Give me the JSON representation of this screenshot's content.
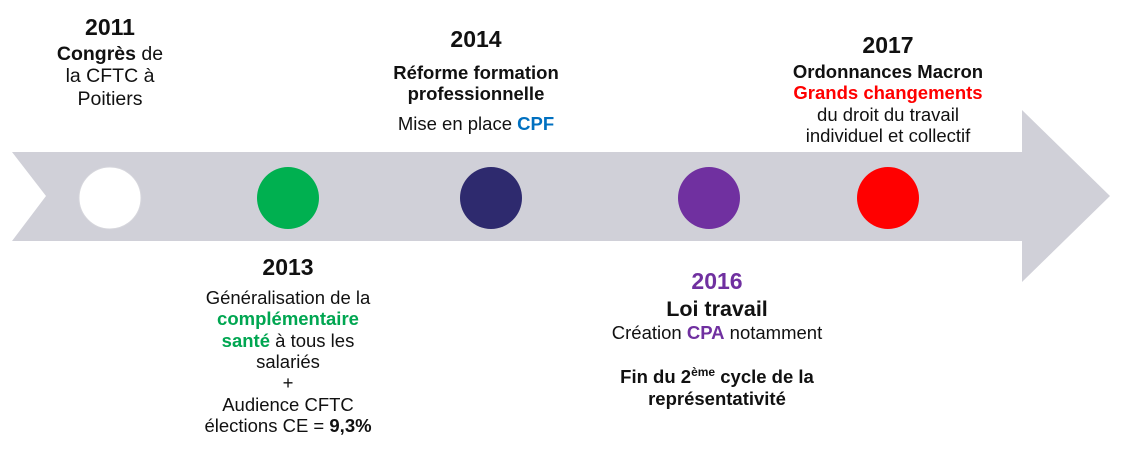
{
  "colors": {
    "arrow": "#d0d0d8",
    "marker_2011": "#ffffff",
    "marker_2013": "#00b050",
    "marker_2014": "#2e2a6e",
    "marker_2016": "#7030a0",
    "marker_2017": "#ff0000"
  },
  "events": {
    "e2011": {
      "year": "2011",
      "part1_bold": "Congrès",
      "part1_rest": " de",
      "line2": "la CFTC à",
      "line3": "Poitiers"
    },
    "e2013": {
      "year": "2013",
      "line1": "Généralisation de la",
      "highlight1": "complémentaire",
      "highlight2": "santé",
      "line3_rest": " à tous les",
      "line4": "salariés",
      "plus": "+",
      "line6": "Audience CFTC",
      "line7_pre": "élections CE = ",
      "line7_value": "9,3%"
    },
    "e2014": {
      "year": "2014",
      "title1": "Réforme formation",
      "title2": "professionnelle",
      "line_pre": "Mise en place ",
      "line_highlight": "CPF"
    },
    "e2016": {
      "year": "2016",
      "title": "Loi travail",
      "line_pre": "Création ",
      "line_highlight": "CPA",
      "line_post": " notamment",
      "cycle_pre": "Fin du 2",
      "cycle_sup": "ème",
      "cycle_post": " cycle de la",
      "cycle_line2": "représentativité"
    },
    "e2017": {
      "year": "2017",
      "title": "Ordonnances Macron",
      "highlight": "Grands changements",
      "line3": "du droit du travail",
      "line4": "individuel et collectif"
    }
  }
}
